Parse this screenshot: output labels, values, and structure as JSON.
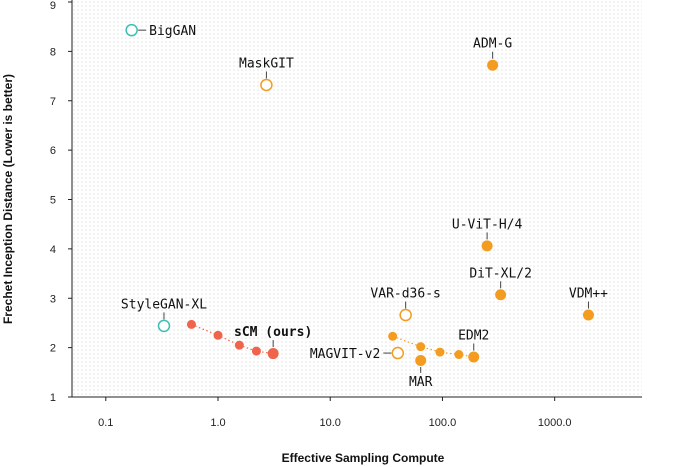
{
  "chart_data": {
    "type": "scatter",
    "xlabel": "Effective Sampling Compute",
    "ylabel": "Frechet Inception Distance (Lower is better)",
    "xscale": "log",
    "xlim": [
      0.05,
      6000
    ],
    "ylim": [
      1,
      9
    ],
    "x_ticks": [
      {
        "value": 0.1,
        "label": "0.1"
      },
      {
        "value": 1,
        "label": "1.0"
      },
      {
        "value": 10,
        "label": "10.0"
      },
      {
        "value": 100,
        "label": "100.0"
      },
      {
        "value": 1000,
        "label": "1000.0"
      }
    ],
    "y_ticks": [
      {
        "value": 1,
        "label": "1"
      },
      {
        "value": 2,
        "label": "2"
      },
      {
        "value": 3,
        "label": "3"
      },
      {
        "value": 4,
        "label": "4"
      },
      {
        "value": 5,
        "label": "5"
      },
      {
        "value": 6,
        "label": "6"
      },
      {
        "value": 7,
        "label": "7"
      },
      {
        "value": 8,
        "label": "8"
      },
      {
        "value": 9,
        "label": "9"
      }
    ],
    "grid": false,
    "colors": {
      "gan": "#3dbfb5",
      "diffusion": "#f39c1f",
      "ours": "#f0644b",
      "background_dots": "#e4e4e4"
    },
    "points": [
      {
        "label": "BigGAN",
        "x": 0.17,
        "y": 8.43,
        "style": "hollow",
        "color": "gan",
        "label_pos": "right"
      },
      {
        "label": "MaskGIT",
        "x": 2.7,
        "y": 7.32,
        "style": "hollow",
        "color": "diffusion",
        "label_pos": "above"
      },
      {
        "label": "ADM-G",
        "x": 280,
        "y": 7.72,
        "style": "filled",
        "color": "diffusion",
        "label_pos": "above"
      },
      {
        "label": "U-ViT-H/4",
        "x": 250,
        "y": 4.06,
        "style": "filled",
        "color": "diffusion",
        "label_pos": "above"
      },
      {
        "label": "DiT-XL/2",
        "x": 330,
        "y": 3.07,
        "style": "filled",
        "color": "diffusion",
        "label_pos": "above"
      },
      {
        "label": "VDM++",
        "x": 2000,
        "y": 2.66,
        "style": "filled",
        "color": "diffusion",
        "label_pos": "above"
      },
      {
        "label": "StyleGAN-XL",
        "x": 0.33,
        "y": 2.44,
        "style": "hollow",
        "color": "gan",
        "label_pos": "above"
      },
      {
        "label": "VAR-d36-s",
        "x": 47,
        "y": 2.66,
        "style": "hollow",
        "color": "diffusion",
        "label_pos": "above"
      },
      {
        "label": "MAGVIT-v2",
        "x": 40,
        "y": 1.89,
        "style": "hollow",
        "color": "diffusion",
        "label_pos": "left"
      },
      {
        "label": "MAR",
        "x": 64,
        "y": 1.74,
        "style": "filled",
        "color": "diffusion",
        "label_pos": "below"
      },
      {
        "label": "EDM2",
        "x": 190,
        "y": 1.81,
        "style": "filled",
        "color": "diffusion",
        "label_pos": "above"
      },
      {
        "label": "sCM (ours)",
        "x": 3.1,
        "y": 1.88,
        "style": "filled",
        "color": "ours",
        "label_pos": "above"
      }
    ],
    "series": [
      {
        "name": "sCM (ours)",
        "color": "ours",
        "points": [
          [
            0.58,
            2.47
          ],
          [
            1.0,
            2.25
          ],
          [
            1.55,
            2.05
          ],
          [
            2.2,
            1.93
          ],
          [
            3.1,
            1.88
          ]
        ]
      },
      {
        "name": "EDM2",
        "color": "diffusion",
        "points": [
          [
            36,
            2.23
          ],
          [
            64,
            2.02
          ],
          [
            95,
            1.91
          ],
          [
            140,
            1.86
          ],
          [
            190,
            1.81
          ]
        ]
      }
    ]
  }
}
